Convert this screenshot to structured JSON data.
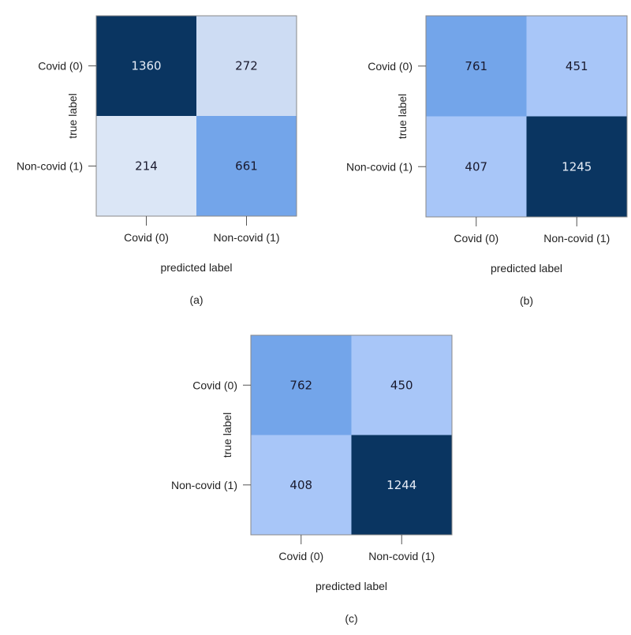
{
  "chart_data": [
    {
      "type": "heatmap",
      "panel": "(a)",
      "xlabel": "predicted label",
      "ylabel": "true label",
      "x_categories": [
        "Covid (0)",
        "Non-covid (1)"
      ],
      "y_categories": [
        "Covid (0)",
        "Non-covid (1)"
      ],
      "values": [
        [
          1360,
          272
        ],
        [
          214,
          661
        ]
      ],
      "cell_colors": [
        [
          "#0a3561",
          "#cddcf3"
        ],
        [
          "#dbe6f6",
          "#73a5ea"
        ]
      ],
      "text_colors": [
        [
          "#e8eef8",
          "#1a1a2e"
        ],
        [
          "#1a1a2e",
          "#1a1a2e"
        ]
      ]
    },
    {
      "type": "heatmap",
      "panel": "(b)",
      "xlabel": "predicted label",
      "ylabel": "true label",
      "x_categories": [
        "Covid (0)",
        "Non-covid (1)"
      ],
      "y_categories": [
        "Covid (0)",
        "Non-covid (1)"
      ],
      "values": [
        [
          761,
          451
        ],
        [
          407,
          1245
        ]
      ],
      "cell_colors": [
        [
          "#73a5ea",
          "#a8c6f8"
        ],
        [
          "#a8c6f8",
          "#0a3561"
        ]
      ],
      "text_colors": [
        [
          "#1a1a2e",
          "#1a1a2e"
        ],
        [
          "#1a1a2e",
          "#e8eef8"
        ]
      ]
    },
    {
      "type": "heatmap",
      "panel": "(c)",
      "xlabel": "predicted label",
      "ylabel": "true label",
      "x_categories": [
        "Covid (0)",
        "Non-covid (1)"
      ],
      "y_categories": [
        "Covid (0)",
        "Non-covid (1)"
      ],
      "values": [
        [
          762,
          450
        ],
        [
          408,
          1244
        ]
      ],
      "cell_colors": [
        [
          "#73a5ea",
          "#a8c6f8"
        ],
        [
          "#a8c6f8",
          "#0a3561"
        ]
      ],
      "text_colors": [
        [
          "#1a1a2e",
          "#1a1a2e"
        ],
        [
          "#1a1a2e",
          "#e8eef8"
        ]
      ]
    }
  ]
}
